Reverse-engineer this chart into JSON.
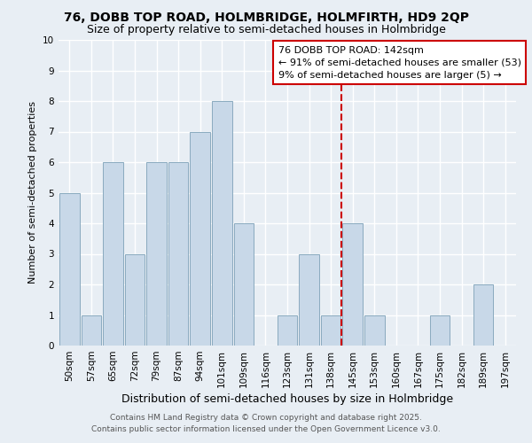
{
  "title": "76, DOBB TOP ROAD, HOLMBRIDGE, HOLMFIRTH, HD9 2QP",
  "subtitle": "Size of property relative to semi-detached houses in Holmbridge",
  "xlabel": "Distribution of semi-detached houses by size in Holmbridge",
  "ylabel": "Number of semi-detached properties",
  "bar_color": "#c8d8e8",
  "bar_edge_color": "#8aaabf",
  "background_color": "#e8eef4",
  "grid_color": "#ffffff",
  "categories": [
    "50sqm",
    "57sqm",
    "65sqm",
    "72sqm",
    "79sqm",
    "87sqm",
    "94sqm",
    "101sqm",
    "109sqm",
    "116sqm",
    "123sqm",
    "131sqm",
    "138sqm",
    "145sqm",
    "153sqm",
    "160sqm",
    "167sqm",
    "175sqm",
    "182sqm",
    "189sqm",
    "197sqm"
  ],
  "values": [
    5,
    1,
    6,
    3,
    6,
    6,
    7,
    8,
    4,
    0,
    1,
    3,
    1,
    4,
    1,
    0,
    0,
    1,
    0,
    2,
    0
  ],
  "ylim": [
    0,
    10
  ],
  "vline_color": "#cc0000",
  "vline_pos": 12.5,
  "legend_title": "76 DOBB TOP ROAD: 142sqm",
  "legend_line1": "← 91% of semi-detached houses are smaller (53)",
  "legend_line2": "9% of semi-detached houses are larger (5) →",
  "footer1": "Contains HM Land Registry data © Crown copyright and database right 2025.",
  "footer2": "Contains public sector information licensed under the Open Government Licence v3.0.",
  "title_fontsize": 10,
  "subtitle_fontsize": 9,
  "xlabel_fontsize": 9,
  "ylabel_fontsize": 8,
  "tick_fontsize": 7.5,
  "legend_fontsize": 8,
  "footer_fontsize": 6.5
}
